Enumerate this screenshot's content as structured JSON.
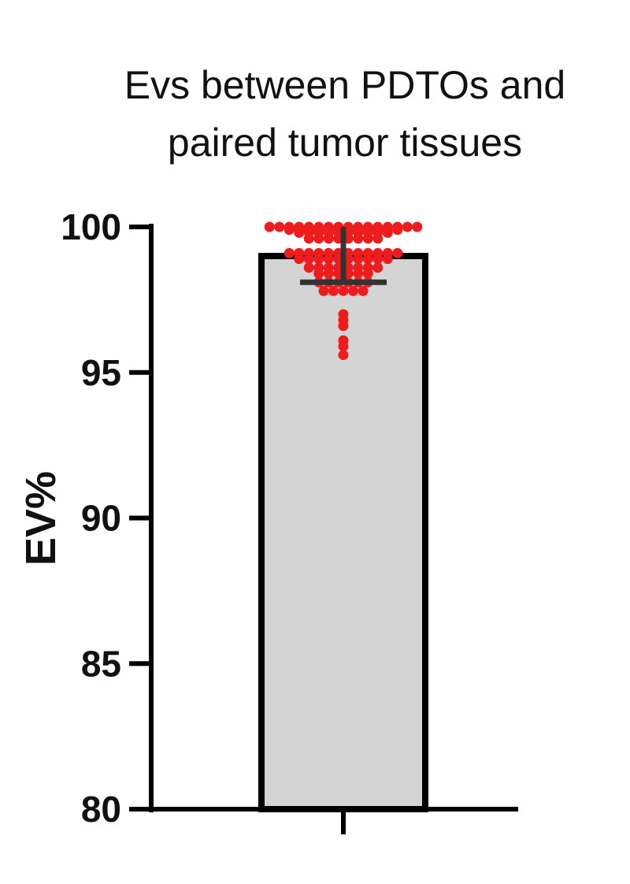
{
  "chart_data": {
    "type": "bar",
    "title_lines": [
      "Evs between PDTOs and",
      "paired tumor tissues"
    ],
    "ylabel": "EV%",
    "xlabel": "",
    "ylim": [
      80,
      100
    ],
    "yticks": [
      {
        "value": 80,
        "label": "80"
      },
      {
        "value": 85,
        "label": "85"
      },
      {
        "value": 90,
        "label": "90"
      },
      {
        "value": 95,
        "label": "95"
      },
      {
        "value": 100,
        "label": "100"
      }
    ],
    "bar": {
      "value": 99.0,
      "error_low": 98.1,
      "error_high": 100.0
    },
    "points": [
      100.0,
      100.0,
      100.0,
      100.0,
      100.0,
      100.0,
      100.0,
      100.0,
      100.0,
      100.0,
      100.0,
      100.0,
      100.0,
      100.0,
      100.0,
      100.0,
      99.9,
      99.9,
      99.9,
      99.9,
      99.9,
      99.9,
      99.9,
      99.9,
      99.9,
      99.9,
      99.9,
      99.9,
      99.8,
      99.8,
      99.8,
      99.8,
      99.8,
      99.8,
      99.8,
      99.8,
      99.8,
      99.8,
      99.6,
      99.6,
      99.6,
      99.6,
      99.6,
      99.6,
      99.6,
      99.6,
      99.1,
      99.1,
      99.1,
      99.1,
      99.1,
      99.1,
      99.1,
      99.1,
      99.1,
      99.1,
      99.1,
      99.1,
      98.9,
      98.9,
      98.9,
      98.9,
      98.9,
      98.9,
      98.9,
      98.9,
      98.9,
      98.9,
      98.6,
      98.6,
      98.6,
      98.6,
      98.6,
      98.6,
      98.6,
      98.6,
      98.4,
      98.4,
      98.4,
      98.4,
      98.4,
      98.4,
      98.1,
      98.1,
      98.1,
      98.1,
      98.1,
      98.1,
      97.8,
      97.8,
      97.8,
      97.8,
      97.8,
      97.0,
      96.8,
      96.6,
      96.1,
      95.9,
      95.6
    ],
    "colors": {
      "bar_fill": "#d4d4d4",
      "bar_stroke": "#000000",
      "points": "#ee1c1c",
      "error_bar": "#333333",
      "axis": "#000000"
    }
  }
}
